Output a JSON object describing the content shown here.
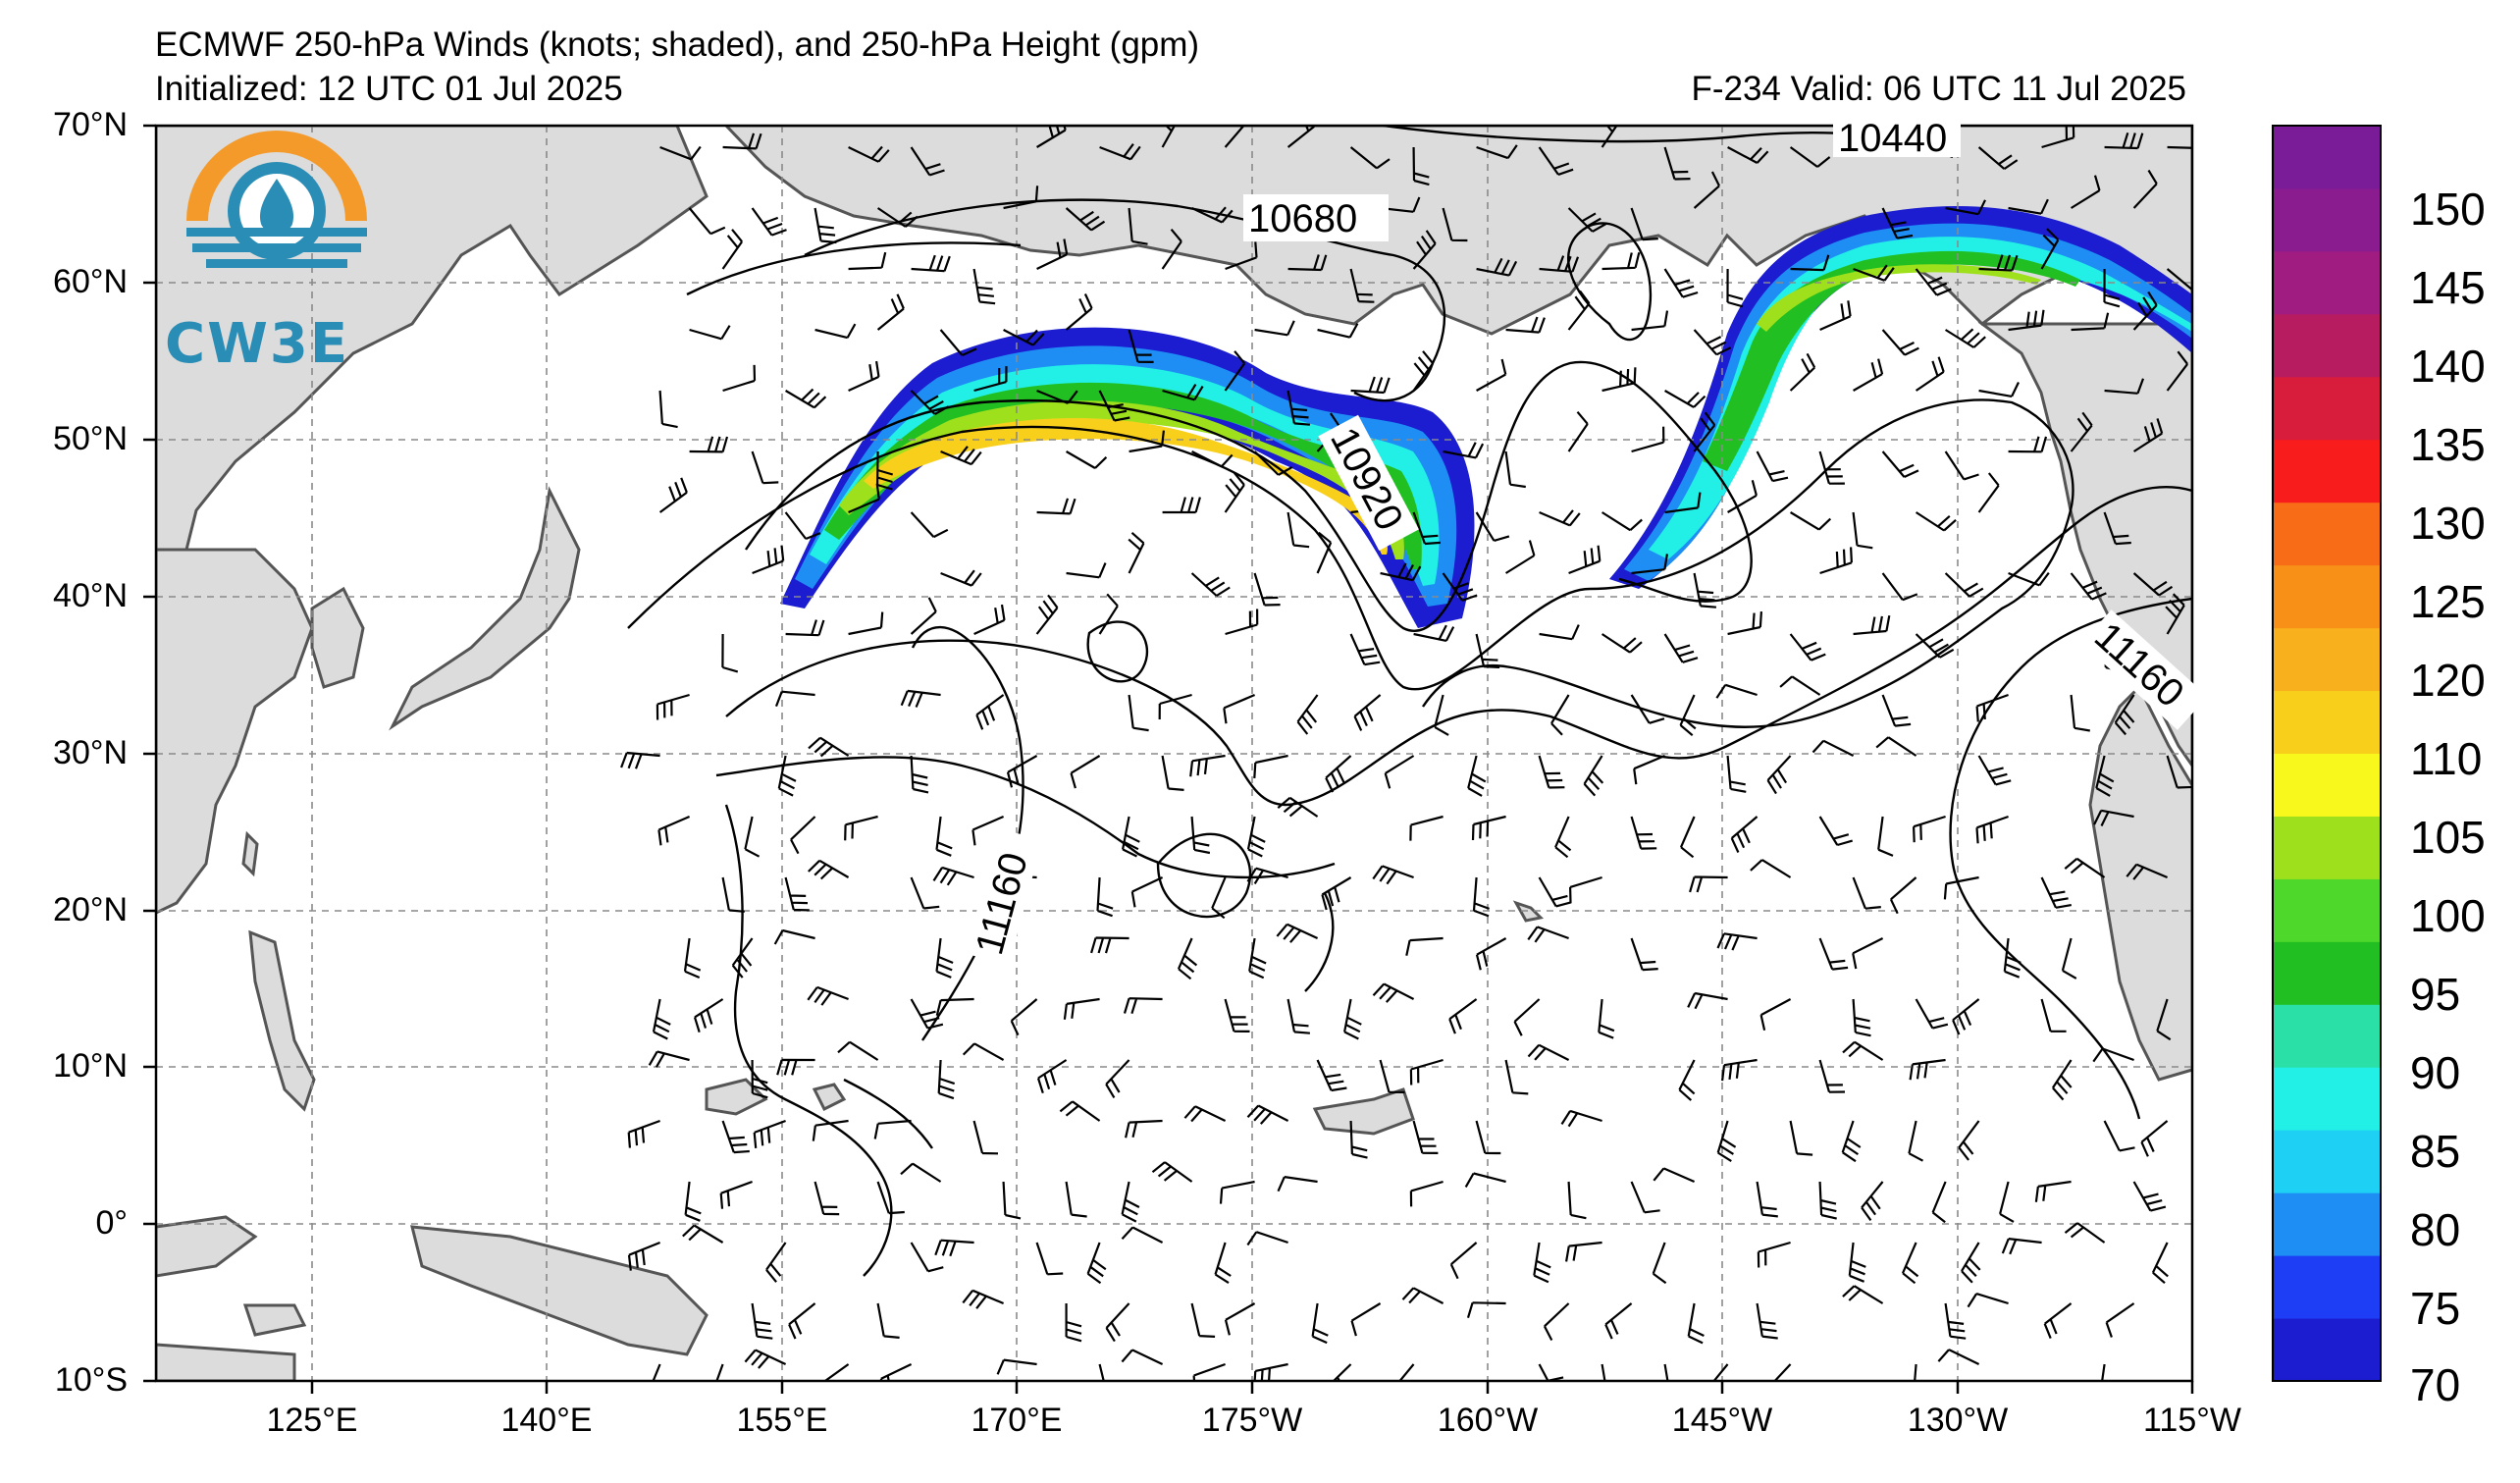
{
  "header": {
    "title_line1": "ECMWF 250-hPa Winds (knots; shaded), and 250-hPa Height (gpm)",
    "initialized": "Initialized: 12 UTC 01 Jul 2025",
    "valid": "F-234  Valid: 06 UTC 11 Jul 2025"
  },
  "logo": {
    "text": "CW3E",
    "orange": "#f39a2b",
    "blue": "#2a8db5"
  },
  "axes": {
    "lat_labels": [
      "70°N",
      "60°N",
      "50°N",
      "40°N",
      "30°N",
      "20°N",
      "10°N",
      "0°",
      "10°S"
    ],
    "lon_labels": [
      "125°E",
      "140°E",
      "155°E",
      "170°E",
      "175°W",
      "160°W",
      "145°W",
      "130°W",
      "115°W"
    ]
  },
  "contour_labels": [
    "10440",
    "10680",
    "10920",
    "11160",
    "11160"
  ],
  "colorbar": {
    "labels": [
      "150",
      "145",
      "140",
      "135",
      "130",
      "125",
      "120",
      "110",
      "105",
      "100",
      "95",
      "90",
      "85",
      "80",
      "75",
      "70"
    ],
    "colors": [
      "#1c1cd0",
      "#1e3ef5",
      "#1e8ef5",
      "#1fd0f5",
      "#22f0e6",
      "#2ae0a6",
      "#22bf22",
      "#4ed82c",
      "#9ee01c",
      "#f8f81c",
      "#f8d01c",
      "#f8b01c",
      "#f89018",
      "#f86c18",
      "#f81c1c",
      "#d81c3c",
      "#b81c60",
      "#a01c80",
      "#8a1c90",
      "#7a1c98"
    ]
  }
}
